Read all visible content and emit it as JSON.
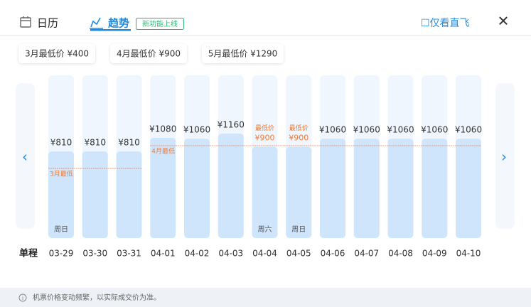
{
  "header": {
    "calendar_tab": "日历",
    "trend_tab": "趋势",
    "badge": "新功能上线",
    "direct_only": "☐仅看直飞",
    "close": "✕"
  },
  "month_lows": [
    "3月最低价 ¥400",
    "4月最低价 ¥900",
    "5月最低价 ¥1290"
  ],
  "chart_data": {
    "type": "bar",
    "row_label": "单程",
    "categories": [
      "03-29",
      "03-30",
      "03-31",
      "04-01",
      "04-02",
      "04-03",
      "04-04",
      "04-05",
      "04-06",
      "04-07",
      "04-08",
      "04-09",
      "04-10"
    ],
    "values": [
      810,
      810,
      810,
      1080,
      1060,
      1160,
      900,
      900,
      1060,
      1060,
      1060,
      1060,
      1060
    ],
    "value_labels": [
      "¥810",
      "¥810",
      "¥810",
      "¥1080",
      "¥1060",
      "¥1160",
      "¥900",
      "¥900",
      "¥1060",
      "¥1060",
      "¥1060",
      "¥1060",
      "¥1060"
    ],
    "notes": [
      null,
      null,
      null,
      null,
      null,
      null,
      "最低价",
      "最低价",
      null,
      null,
      null,
      null,
      null
    ],
    "weekdays": [
      "周日",
      null,
      null,
      null,
      null,
      null,
      "周六",
      "周日",
      null,
      null,
      null,
      null,
      null
    ],
    "annotations": [
      "3月最低",
      "4月最低"
    ],
    "color": "#cfe5fb",
    "highlight_color": "#f07a3a",
    "ylim": [
      -900,
      1400
    ]
  },
  "footer": "机票价格变动频繁，以实际成交价为准。"
}
